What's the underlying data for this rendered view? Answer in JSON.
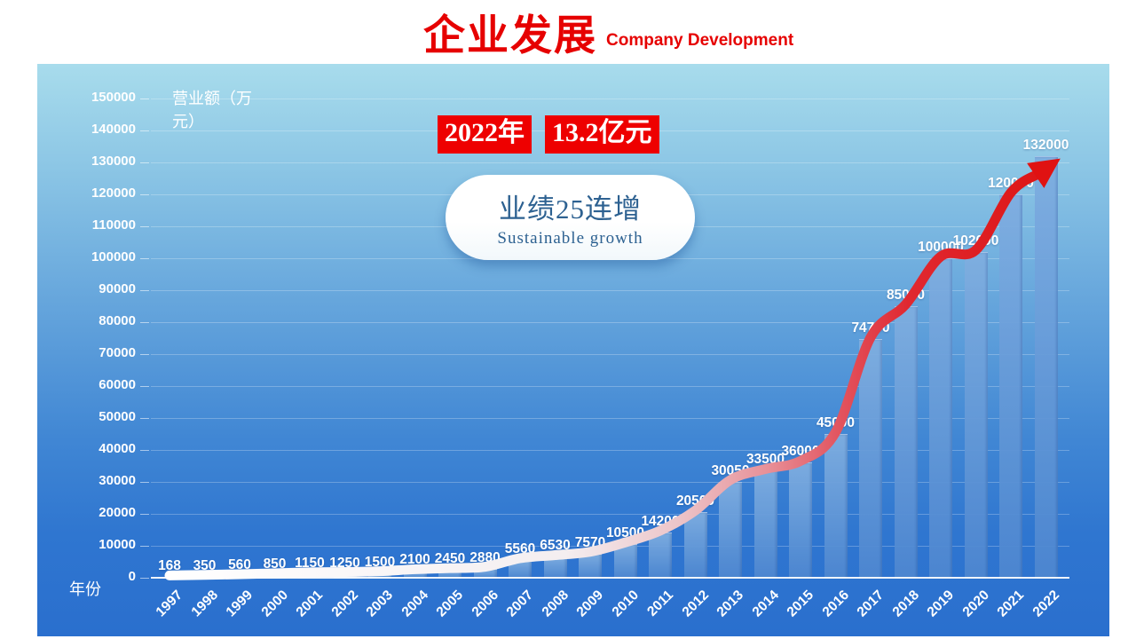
{
  "header": {
    "title": "企业发展",
    "subtitle": "Company Development"
  },
  "annotations": {
    "year_badge": "2022年",
    "amount_badge": "13.2亿元",
    "callout_title": "业绩25连增",
    "callout_subtitle": "Sustainable growth"
  },
  "chart_data": {
    "type": "bar",
    "title": "企业发展 Company Development",
    "xlabel": "年份",
    "ylabel": "营业额（万元）",
    "categories": [
      "1997",
      "1998",
      "1999",
      "2000",
      "2001",
      "2002",
      "2003",
      "2004",
      "2005",
      "2006",
      "2007",
      "2008",
      "2009",
      "2010",
      "2011",
      "2012",
      "2013",
      "2014",
      "2015",
      "2016",
      "2017",
      "2018",
      "2019",
      "2020",
      "2021",
      "2022"
    ],
    "values": [
      168,
      350,
      560,
      850,
      1150,
      1250,
      1500,
      2100,
      2450,
      2880,
      5560,
      6530,
      7570,
      10500,
      14200,
      20500,
      30050,
      33500,
      36000,
      45000,
      74700,
      85000,
      100000,
      102000,
      120000,
      132000
    ],
    "ylim": [
      0,
      150000
    ],
    "ytick_step": 10000,
    "grid": true,
    "bar_value_labels": true,
    "legend": "none",
    "trend_arrow": {
      "follows": "values",
      "gradient_start": "#ffffff",
      "gradient_end": "#dd1515",
      "arrowhead_color": "#e01212"
    }
  },
  "colors": {
    "accent_red": "#e60000",
    "badge_bg": "#ee0000",
    "badge_text": "#ffffff",
    "panel_top": "#a8dcec",
    "panel_bottom": "#2a6fce",
    "bar_top": "#7faee0",
    "bar_bottom": "#4d87d1",
    "axis_text": "#ffffff",
    "callout_bg": "#ffffff",
    "callout_text": "#2d6191"
  }
}
